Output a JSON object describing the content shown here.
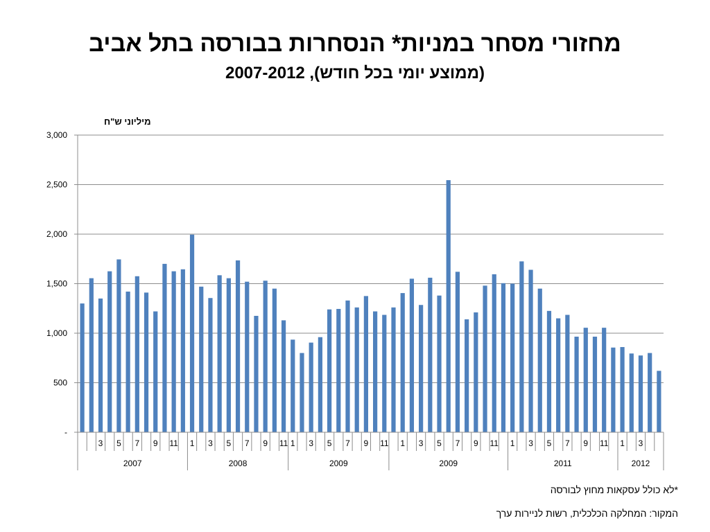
{
  "chart_data": {
    "type": "bar",
    "title": "מחזורי מסחר במניות* הנסחרות בבורסה בתל אביב",
    "subtitle": "(ממוצע יומי בכל חודש), 2007-2012",
    "ylabel": "מיליוני ש\"ח",
    "ylim": [
      0,
      3000
    ],
    "yticks": [
      0,
      500,
      1000,
      1500,
      2000,
      2500,
      3000
    ],
    "ytick_labels": [
      "-",
      "500",
      "1,000",
      "1,500",
      "2,000",
      "2,500",
      "3,000"
    ],
    "grid": true,
    "color": "#4f81bd",
    "groups": [
      {
        "label": "2007",
        "months": [
          1,
          2,
          3,
          4,
          5,
          6,
          7,
          8,
          9,
          10,
          11,
          12
        ],
        "values": [
          1300,
          1555,
          1350,
          1625,
          1745,
          1420,
          1575,
          1410,
          1220,
          1700,
          1625,
          1645
        ]
      },
      {
        "label": "2008",
        "months": [
          1,
          2,
          3,
          4,
          5,
          6,
          7,
          8,
          9,
          10,
          11
        ],
        "values": [
          1995,
          1470,
          1355,
          1585,
          1555,
          1735,
          1520,
          1175,
          1530,
          1450,
          1130
        ]
      },
      {
        "label": "2009",
        "months": [
          1,
          2,
          3,
          4,
          5,
          6,
          7,
          8,
          9,
          10,
          11
        ],
        "values": [
          935,
          800,
          905,
          960,
          1240,
          1245,
          1330,
          1260,
          1375,
          1220,
          1185
        ]
      },
      {
        "label": "2009",
        "months": [
          12,
          1,
          2,
          3,
          4,
          5,
          6,
          7,
          8,
          9,
          10,
          11,
          12
        ],
        "values": [
          1260,
          1405,
          1550,
          1285,
          1560,
          1380,
          2545,
          1620,
          1140,
          1210,
          1480,
          1595,
          1505
        ]
      },
      {
        "label": "2011",
        "months": [
          1,
          2,
          3,
          4,
          5,
          6,
          7,
          8,
          9,
          10,
          11,
          12
        ],
        "values": [
          1500,
          1725,
          1640,
          1450,
          1225,
          1150,
          1185,
          965,
          1055,
          965,
          1055,
          855
        ]
      },
      {
        "label": "2012",
        "months": [
          1,
          2,
          3,
          4
        ],
        "values": [
          860,
          795,
          775,
          800
        ]
      }
    ],
    "trailing_bar": 620,
    "month_labels_shown": [
      "1",
      "3",
      "5",
      "7",
      "9",
      "11"
    ]
  },
  "notes": {
    "footnote": "*לא כולל עסקאות מחוץ לבורסה",
    "source": "המקור: המחלקה הכלכלית, רשות לניירות ערך"
  }
}
